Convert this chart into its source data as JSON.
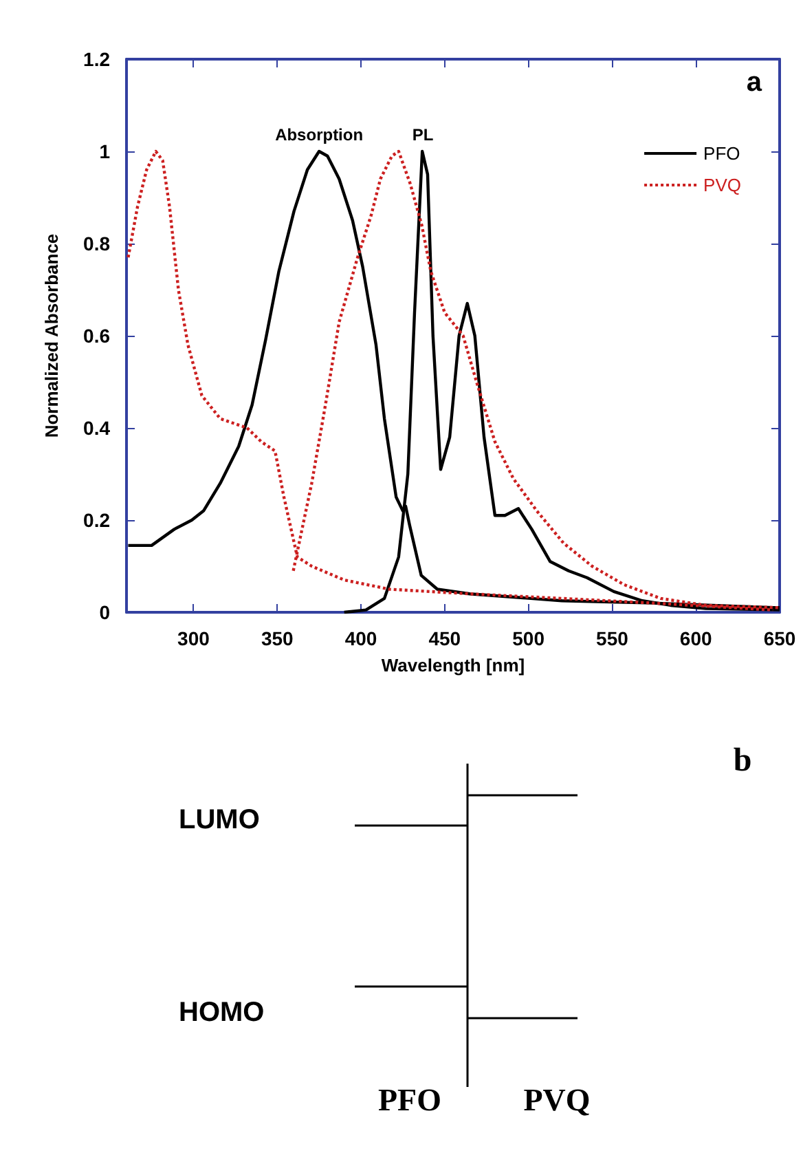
{
  "chart_data": [
    {
      "type": "line",
      "xlabel": "Wavelength [nm]",
      "ylabel": "Normalized Absorbance",
      "xlim": [
        260,
        650
      ],
      "xticks": [
        300,
        350,
        400,
        450,
        500,
        550,
        600,
        650
      ],
      "ylim": [
        0,
        1.2
      ],
      "yticks": [
        0,
        0.2,
        0.4,
        0.6,
        0.8,
        1,
        1.2
      ],
      "grid": false,
      "legend": "top right",
      "marker": "none",
      "annotations": [
        {
          "text": "Absorption",
          "x": 375,
          "y": 1
        },
        {
          "text": "PL",
          "x": 437,
          "y": 1
        },
        "a"
      ],
      "series": [
        {
          "name": "PFO",
          "color": "#000000",
          "line_style": "solid",
          "x": [
            261,
            275,
            288.5,
            299,
            306,
            316,
            327,
            335,
            343,
            351,
            360,
            368,
            375,
            380,
            387,
            395,
            401,
            409,
            414,
            421,
            425,
            426.7,
            429,
            436,
            445.6,
            465,
            520,
            574.5,
            646,
            650
          ],
          "values": [
            0.145,
            0.145,
            0.18,
            0.2,
            0.22,
            0.28,
            0.36,
            0.45,
            0.59,
            0.74,
            0.87,
            0.96,
            1,
            0.99,
            0.94,
            0.85,
            0.75,
            0.58,
            0.42,
            0.25,
            0.22,
            0.23,
            0.19,
            0.08,
            0.05,
            0.04,
            0.025,
            0.02,
            0.01,
            0.01
          ]
        },
        {
          "color": "#000000",
          "line_style": "solid",
          "x": [
            390,
            403,
            414,
            422.5,
            428,
            432,
            436.6,
            439.8,
            443,
            447.6,
            453,
            458.6,
            463.5,
            468,
            473.5,
            480,
            486,
            494,
            502,
            513,
            524,
            535,
            551,
            568,
            585,
            606,
            650
          ],
          "values": [
            0,
            0.005,
            0.03,
            0.12,
            0.3,
            0.65,
            1,
            0.95,
            0.6,
            0.31,
            0.38,
            0.6,
            0.67,
            0.6,
            0.38,
            0.21,
            0.21,
            0.225,
            0.18,
            0.11,
            0.09,
            0.075,
            0.045,
            0.025,
            0.015,
            0.008,
            0.005
          ]
        },
        {
          "name": "PVQ",
          "color": "#cc2020",
          "line_style": "dotted",
          "x": [
            261,
            266.6,
            272,
            277.5,
            281.6,
            285.7,
            291,
            296.7,
            305,
            316,
            332,
            340.5,
            348.7,
            354,
            362,
            370.6,
            390,
            417,
            465,
            520,
            574.5,
            646
          ],
          "values": [
            0.77,
            0.88,
            0.96,
            1,
            0.98,
            0.88,
            0.7,
            0.58,
            0.47,
            0.42,
            0.4,
            0.37,
            0.35,
            0.25,
            0.12,
            0.1,
            0.07,
            0.05,
            0.04,
            0.03,
            0.02,
            0.005
          ]
        },
        {
          "color": "#cc2020",
          "line_style": "dotted",
          "x": [
            359.6,
            370.6,
            378.8,
            387,
            398,
            406,
            411.6,
            418.5,
            422.5,
            429.4,
            436.3,
            441.7,
            450,
            461,
            469,
            480,
            491,
            505,
            521,
            538,
            557,
            579,
            606,
            650
          ],
          "values": [
            0.09,
            0.28,
            0.45,
            0.63,
            0.77,
            0.86,
            0.94,
            0.99,
            1,
            0.93,
            0.84,
            0.74,
            0.65,
            0.6,
            0.5,
            0.37,
            0.29,
            0.22,
            0.15,
            0.1,
            0.06,
            0.03,
            0.015,
            0.01
          ]
        }
      ]
    },
    {
      "type": "other",
      "title": "b",
      "categories": [
        "PFO",
        "PVQ"
      ],
      "annotations": [
        "LUMO",
        "HOMO"
      ]
    }
  ]
}
